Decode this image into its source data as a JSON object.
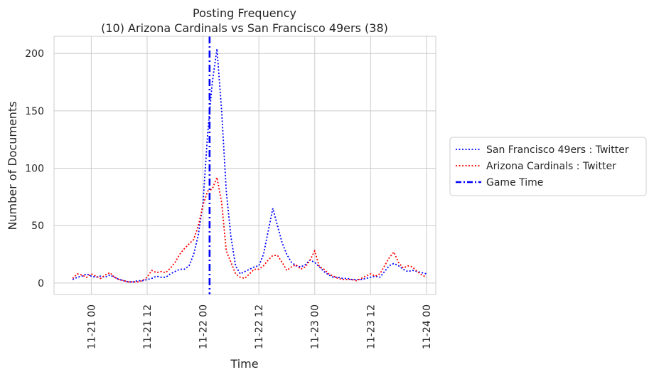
{
  "chart_data": {
    "type": "line",
    "title": "Posting Frequency",
    "subtitle": "(10) Arizona Cardinals vs San Francisco 49ers (38)",
    "xlabel": "Time",
    "ylabel": "Number of Documents",
    "x_axis": {
      "type": "datetime",
      "range": [
        "2020-11-20 16:00",
        "2020-11-24 02:00"
      ],
      "ticks": [
        "11-21 00",
        "11-21 12",
        "11-22 00",
        "11-22 12",
        "11-23 00",
        "11-23 12",
        "11-24 00"
      ],
      "tick_times": [
        "2020-11-21 00:00",
        "2020-11-21 12:00",
        "2020-11-22 00:00",
        "2020-11-22 12:00",
        "2020-11-23 00:00",
        "2020-11-23 12:00",
        "2020-11-24 00:00"
      ]
    },
    "y_axis": {
      "range": [
        -10,
        215
      ],
      "ticks": [
        "0",
        "50",
        "100",
        "150",
        "200"
      ],
      "tick_values": [
        0,
        50,
        100,
        150,
        200
      ]
    },
    "grid": true,
    "legend_position": "right",
    "event": {
      "name": "Game Time",
      "time": "2020-11-22 01:25",
      "color": "#0000ff",
      "style": "dash-dot"
    },
    "series": [
      {
        "name": "San Francisco 49ers : Twitter",
        "color": "#0000ff",
        "style": "dotted",
        "points": [
          [
            "2020-11-20 20:00",
            3
          ],
          [
            "2020-11-20 21:00",
            5
          ],
          [
            "2020-11-20 22:00",
            6
          ],
          [
            "2020-11-20 23:00",
            8
          ],
          [
            "2020-11-21 00:00",
            6
          ],
          [
            "2020-11-21 01:00",
            5
          ],
          [
            "2020-11-21 02:00",
            6
          ],
          [
            "2020-11-21 03:00",
            5
          ],
          [
            "2020-11-21 04:00",
            7
          ],
          [
            "2020-11-21 05:00",
            5
          ],
          [
            "2020-11-21 06:00",
            3
          ],
          [
            "2020-11-21 07:00",
            2
          ],
          [
            "2020-11-21 08:00",
            1
          ],
          [
            "2020-11-21 09:00",
            1
          ],
          [
            "2020-11-21 10:00",
            2
          ],
          [
            "2020-11-21 11:00",
            2
          ],
          [
            "2020-11-21 12:00",
            3
          ],
          [
            "2020-11-21 13:00",
            4
          ],
          [
            "2020-11-21 14:00",
            6
          ],
          [
            "2020-11-21 15:00",
            5
          ],
          [
            "2020-11-21 16:00",
            5
          ],
          [
            "2020-11-21 17:00",
            8
          ],
          [
            "2020-11-21 18:00",
            10
          ],
          [
            "2020-11-21 19:00",
            12
          ],
          [
            "2020-11-21 20:00",
            12
          ],
          [
            "2020-11-21 21:00",
            15
          ],
          [
            "2020-11-21 22:00",
            25
          ],
          [
            "2020-11-21 23:00",
            42
          ],
          [
            "2020-11-22 00:00",
            70
          ],
          [
            "2020-11-22 01:00",
            130
          ],
          [
            "2020-11-22 02:00",
            175
          ],
          [
            "2020-11-22 03:00",
            204
          ],
          [
            "2020-11-22 04:00",
            150
          ],
          [
            "2020-11-22 05:00",
            80
          ],
          [
            "2020-11-22 06:00",
            40
          ],
          [
            "2020-11-22 07:00",
            15
          ],
          [
            "2020-11-22 08:00",
            8
          ],
          [
            "2020-11-22 09:00",
            10
          ],
          [
            "2020-11-22 10:00",
            12
          ],
          [
            "2020-11-22 11:00",
            14
          ],
          [
            "2020-11-22 12:00",
            15
          ],
          [
            "2020-11-22 13:00",
            25
          ],
          [
            "2020-11-22 14:00",
            45
          ],
          [
            "2020-11-22 15:00",
            65
          ],
          [
            "2020-11-22 16:00",
            50
          ],
          [
            "2020-11-22 17:00",
            35
          ],
          [
            "2020-11-22 18:00",
            25
          ],
          [
            "2020-11-22 19:00",
            18
          ],
          [
            "2020-11-22 20:00",
            15
          ],
          [
            "2020-11-22 21:00",
            14
          ],
          [
            "2020-11-22 22:00",
            16
          ],
          [
            "2020-11-22 23:00",
            20
          ],
          [
            "2020-11-23 00:00",
            18
          ],
          [
            "2020-11-23 01:00",
            14
          ],
          [
            "2020-11-23 02:00",
            10
          ],
          [
            "2020-11-23 03:00",
            7
          ],
          [
            "2020-11-23 04:00",
            5
          ],
          [
            "2020-11-23 05:00",
            5
          ],
          [
            "2020-11-23 06:00",
            4
          ],
          [
            "2020-11-23 07:00",
            4
          ],
          [
            "2020-11-23 08:00",
            3
          ],
          [
            "2020-11-23 09:00",
            3
          ],
          [
            "2020-11-23 10:00",
            3
          ],
          [
            "2020-11-23 11:00",
            4
          ],
          [
            "2020-11-23 12:00",
            5
          ],
          [
            "2020-11-23 13:00",
            6
          ],
          [
            "2020-11-23 14:00",
            5
          ],
          [
            "2020-11-23 15:00",
            10
          ],
          [
            "2020-11-23 16:00",
            15
          ],
          [
            "2020-11-23 17:00",
            17
          ],
          [
            "2020-11-23 18:00",
            15
          ],
          [
            "2020-11-23 19:00",
            12
          ],
          [
            "2020-11-23 20:00",
            10
          ],
          [
            "2020-11-23 21:00",
            11
          ],
          [
            "2020-11-23 22:00",
            10
          ],
          [
            "2020-11-23 23:00",
            9
          ],
          [
            "2020-11-24 00:00",
            8
          ]
        ]
      },
      {
        "name": "Arizona Cardinals : Twitter",
        "color": "#ff0000",
        "style": "dotted",
        "points": [
          [
            "2020-11-20 20:00",
            4
          ],
          [
            "2020-11-20 21:00",
            8
          ],
          [
            "2020-11-20 22:00",
            7
          ],
          [
            "2020-11-20 23:00",
            5
          ],
          [
            "2020-11-21 00:00",
            8
          ],
          [
            "2020-11-21 01:00",
            6
          ],
          [
            "2020-11-21 02:00",
            4
          ],
          [
            "2020-11-21 03:00",
            7
          ],
          [
            "2020-11-21 04:00",
            9
          ],
          [
            "2020-11-21 05:00",
            5
          ],
          [
            "2020-11-21 06:00",
            3
          ],
          [
            "2020-11-21 07:00",
            2
          ],
          [
            "2020-11-21 08:00",
            1
          ],
          [
            "2020-11-21 09:00",
            1
          ],
          [
            "2020-11-21 10:00",
            1
          ],
          [
            "2020-11-21 11:00",
            2
          ],
          [
            "2020-11-21 12:00",
            5
          ],
          [
            "2020-11-21 13:00",
            11
          ],
          [
            "2020-11-21 14:00",
            9
          ],
          [
            "2020-11-21 15:00",
            10
          ],
          [
            "2020-11-21 16:00",
            9
          ],
          [
            "2020-11-21 17:00",
            13
          ],
          [
            "2020-11-21 18:00",
            18
          ],
          [
            "2020-11-21 19:00",
            25
          ],
          [
            "2020-11-21 20:00",
            30
          ],
          [
            "2020-11-21 21:00",
            34
          ],
          [
            "2020-11-21 22:00",
            38
          ],
          [
            "2020-11-21 23:00",
            50
          ],
          [
            "2020-11-22 00:00",
            68
          ],
          [
            "2020-11-22 01:00",
            80
          ],
          [
            "2020-11-22 02:00",
            82
          ],
          [
            "2020-11-22 03:00",
            92
          ],
          [
            "2020-11-22 04:00",
            70
          ],
          [
            "2020-11-22 05:00",
            28
          ],
          [
            "2020-11-22 06:00",
            18
          ],
          [
            "2020-11-22 07:00",
            8
          ],
          [
            "2020-11-22 08:00",
            5
          ],
          [
            "2020-11-22 09:00",
            4
          ],
          [
            "2020-11-22 10:00",
            8
          ],
          [
            "2020-11-22 11:00",
            12
          ],
          [
            "2020-11-22 12:00",
            12
          ],
          [
            "2020-11-22 13:00",
            15
          ],
          [
            "2020-11-22 14:00",
            20
          ],
          [
            "2020-11-22 15:00",
            24
          ],
          [
            "2020-11-22 16:00",
            24
          ],
          [
            "2020-11-22 17:00",
            18
          ],
          [
            "2020-11-22 18:00",
            11
          ],
          [
            "2020-11-22 19:00",
            14
          ],
          [
            "2020-11-22 20:00",
            16
          ],
          [
            "2020-11-22 21:00",
            12
          ],
          [
            "2020-11-22 22:00",
            14
          ],
          [
            "2020-11-22 23:00",
            20
          ],
          [
            "2020-11-23 00:00",
            28
          ],
          [
            "2020-11-23 01:00",
            14
          ],
          [
            "2020-11-23 02:00",
            12
          ],
          [
            "2020-11-23 03:00",
            8
          ],
          [
            "2020-11-23 04:00",
            6
          ],
          [
            "2020-11-23 05:00",
            4
          ],
          [
            "2020-11-23 06:00",
            3
          ],
          [
            "2020-11-23 07:00",
            3
          ],
          [
            "2020-11-23 08:00",
            3
          ],
          [
            "2020-11-23 09:00",
            2
          ],
          [
            "2020-11-23 10:00",
            4
          ],
          [
            "2020-11-23 11:00",
            6
          ],
          [
            "2020-11-23 12:00",
            8
          ],
          [
            "2020-11-23 13:00",
            6
          ],
          [
            "2020-11-23 14:00",
            8
          ],
          [
            "2020-11-23 15:00",
            15
          ],
          [
            "2020-11-23 16:00",
            22
          ],
          [
            "2020-11-23 17:00",
            27
          ],
          [
            "2020-11-23 18:00",
            18
          ],
          [
            "2020-11-23 19:00",
            13
          ],
          [
            "2020-11-23 20:00",
            15
          ],
          [
            "2020-11-23 21:00",
            14
          ],
          [
            "2020-11-23 22:00",
            10
          ],
          [
            "2020-11-23 23:00",
            7
          ],
          [
            "2020-11-24 00:00",
            5
          ]
        ]
      }
    ]
  }
}
